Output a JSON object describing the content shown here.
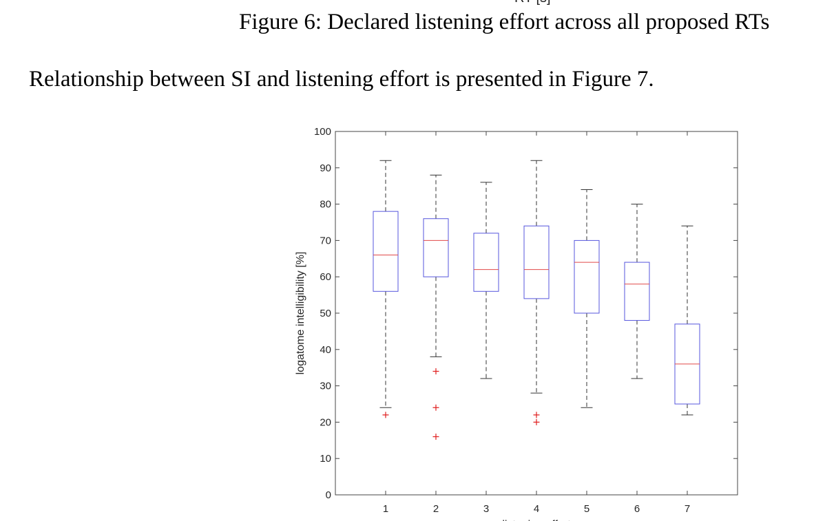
{
  "page": {
    "previous_axis_label": "RT [s]",
    "caption": "Figure 6: Declared listening effort across all proposed RTs",
    "paragraph": "Relationship between SI and listening effort is presented in Figure 7."
  },
  "chart_data": {
    "type": "boxplot",
    "xlabel": "listening effort",
    "ylabel": "logatome intelligibility [%]",
    "categories": [
      "1",
      "2",
      "3",
      "4",
      "5",
      "6",
      "7"
    ],
    "ylim": [
      0,
      100
    ],
    "xlim": [
      0,
      8
    ],
    "yticks": [
      "0",
      "10",
      "20",
      "30",
      "40",
      "50",
      "60",
      "70",
      "80",
      "90",
      "100"
    ],
    "grid": false,
    "colors": {
      "box": "#5555dd",
      "median": "#e04848",
      "whisker": "#333333",
      "outlier": "#e02020"
    },
    "boxes": [
      {
        "category": "1",
        "whisker_low": 24,
        "q1": 56,
        "median": 66,
        "q3": 78,
        "whisker_high": 92,
        "outliers": [
          22
        ]
      },
      {
        "category": "2",
        "whisker_low": 38,
        "q1": 60,
        "median": 70,
        "q3": 76,
        "whisker_high": 88,
        "outliers": [
          34,
          24,
          16
        ]
      },
      {
        "category": "3",
        "whisker_low": 32,
        "q1": 56,
        "median": 62,
        "q3": 72,
        "whisker_high": 86,
        "outliers": []
      },
      {
        "category": "4",
        "whisker_low": 28,
        "q1": 54,
        "median": 62,
        "q3": 74,
        "whisker_high": 92,
        "outliers": [
          22,
          20
        ]
      },
      {
        "category": "5",
        "whisker_low": 24,
        "q1": 50,
        "median": 64,
        "q3": 70,
        "whisker_high": 84,
        "outliers": []
      },
      {
        "category": "6",
        "whisker_low": 32,
        "q1": 48,
        "median": 58,
        "q3": 64,
        "whisker_high": 80,
        "outliers": []
      },
      {
        "category": "7",
        "whisker_low": 22,
        "q1": 25,
        "median": 36,
        "q3": 47,
        "whisker_high": 74,
        "outliers": []
      }
    ]
  }
}
